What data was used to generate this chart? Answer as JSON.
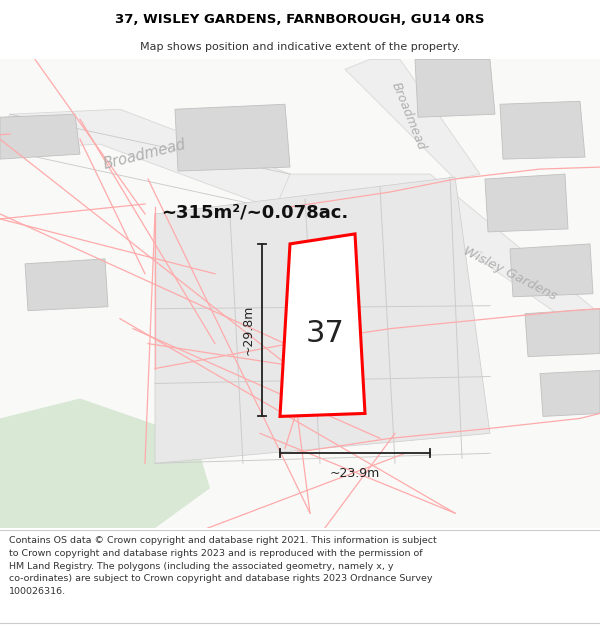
{
  "title": "37, WISLEY GARDENS, FARNBOROUGH, GU14 0RS",
  "subtitle": "Map shows position and indicative extent of the property.",
  "footer": "Contains OS data © Crown copyright and database right 2021. This information is subject to Crown copyright and database rights 2023 and is reproduced with the permission of HM Land Registry. The polygons (including the associated geometry, namely x, y co-ordinates) are subject to Crown copyright and database rights 2023 Ordnance Survey 100026316.",
  "area_label": "~315m²/~0.078ac.",
  "number_label": "37",
  "dim_width": "~23.9m",
  "dim_height": "~29.8m",
  "bg_color": "#f8f8f8",
  "road_fill": "#e8e8e8",
  "road_edge": "#cccccc",
  "plot_color": "#ff0000",
  "parcel_fill": "#e0e0e0",
  "parcel_edge": "#c8c8c8",
  "pink_edge": "#ffaaaa",
  "green_color": "#d8e8d5",
  "street_color": "#b0b0b0",
  "dim_color": "#222222",
  "bld_fill": "#d8d8d8",
  "bld_edge": "#c0c0c0"
}
